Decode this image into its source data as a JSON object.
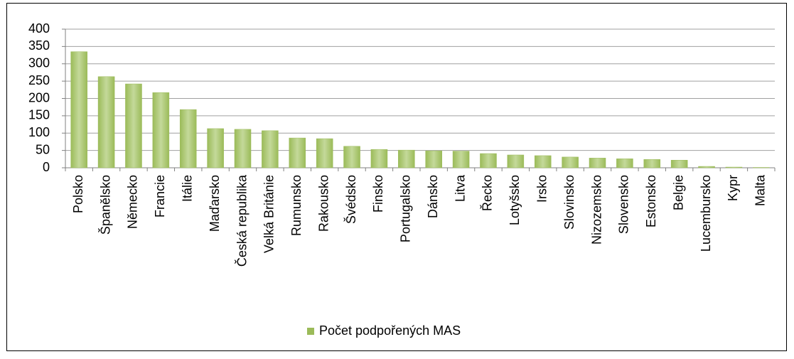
{
  "chart_data": {
    "type": "bar",
    "categories": [
      "Polsko",
      "Španělsko",
      "Německo",
      "Francie",
      "Itálie",
      "Maďarsko",
      "Česká republika",
      "Velká Británie",
      "Rumunsko",
      "Rakousko",
      "Švédsko",
      "Finsko",
      "Portugalsko",
      "Dánsko",
      "Litva",
      "Řecko",
      "Lotyšsko",
      "Irsko",
      "Slovinsko",
      "Nizozemsko",
      "Slovensko",
      "Estonsko",
      "Belgie",
      "Lucembursko",
      "Kypr",
      "Malta"
    ],
    "series": [
      {
        "name": "Počet podpořených MAS",
        "color": "#9bbb59",
        "values": [
          335,
          263,
          242,
          217,
          168,
          113,
          111,
          107,
          86,
          84,
          62,
          53,
          51,
          49,
          48,
          41,
          37,
          35,
          31,
          28,
          26,
          24,
          22,
          4,
          2,
          1
        ]
      }
    ],
    "ylim": [
      0,
      400
    ],
    "yticks": [
      0,
      50,
      100,
      150,
      200,
      250,
      300,
      350,
      400
    ],
    "grid": true,
    "legend": "bottom"
  }
}
